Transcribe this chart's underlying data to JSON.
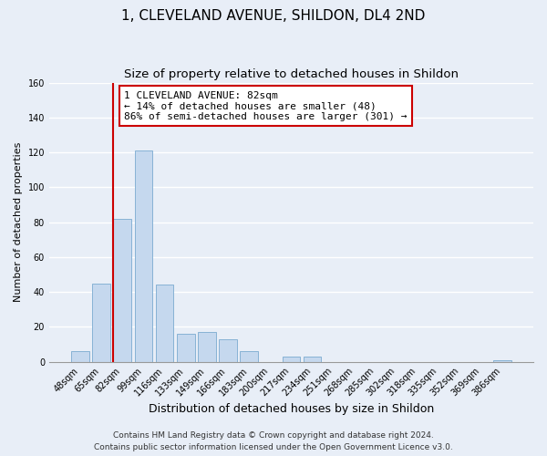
{
  "title": "1, CLEVELAND AVENUE, SHILDON, DL4 2ND",
  "subtitle": "Size of property relative to detached houses in Shildon",
  "xlabel": "Distribution of detached houses by size in Shildon",
  "ylabel": "Number of detached properties",
  "bar_labels": [
    "48sqm",
    "65sqm",
    "82sqm",
    "99sqm",
    "116sqm",
    "133sqm",
    "149sqm",
    "166sqm",
    "183sqm",
    "200sqm",
    "217sqm",
    "234sqm",
    "251sqm",
    "268sqm",
    "285sqm",
    "302sqm",
    "318sqm",
    "335sqm",
    "352sqm",
    "369sqm",
    "386sqm"
  ],
  "bar_values": [
    6,
    45,
    82,
    121,
    44,
    16,
    17,
    13,
    6,
    0,
    3,
    3,
    0,
    0,
    0,
    0,
    0,
    0,
    0,
    0,
    1
  ],
  "bar_color": "#c5d8ee",
  "bar_edge_color": "#7aaad0",
  "highlight_bar_index": 2,
  "highlight_line_color": "#cc0000",
  "ylim": [
    0,
    160
  ],
  "yticks": [
    0,
    20,
    40,
    60,
    80,
    100,
    120,
    140,
    160
  ],
  "annotation_title": "1 CLEVELAND AVENUE: 82sqm",
  "annotation_line1": "← 14% of detached houses are smaller (48)",
  "annotation_line2": "86% of semi-detached houses are larger (301) →",
  "annotation_box_color": "#ffffff",
  "annotation_box_edge_color": "#cc0000",
  "footer_line1": "Contains HM Land Registry data © Crown copyright and database right 2024.",
  "footer_line2": "Contains public sector information licensed under the Open Government Licence v3.0.",
  "background_color": "#e8eef7",
  "grid_color": "#ffffff",
  "title_fontsize": 11,
  "subtitle_fontsize": 9.5,
  "ylabel_fontsize": 8,
  "xlabel_fontsize": 9,
  "tick_fontsize": 7,
  "footer_fontsize": 6.5
}
